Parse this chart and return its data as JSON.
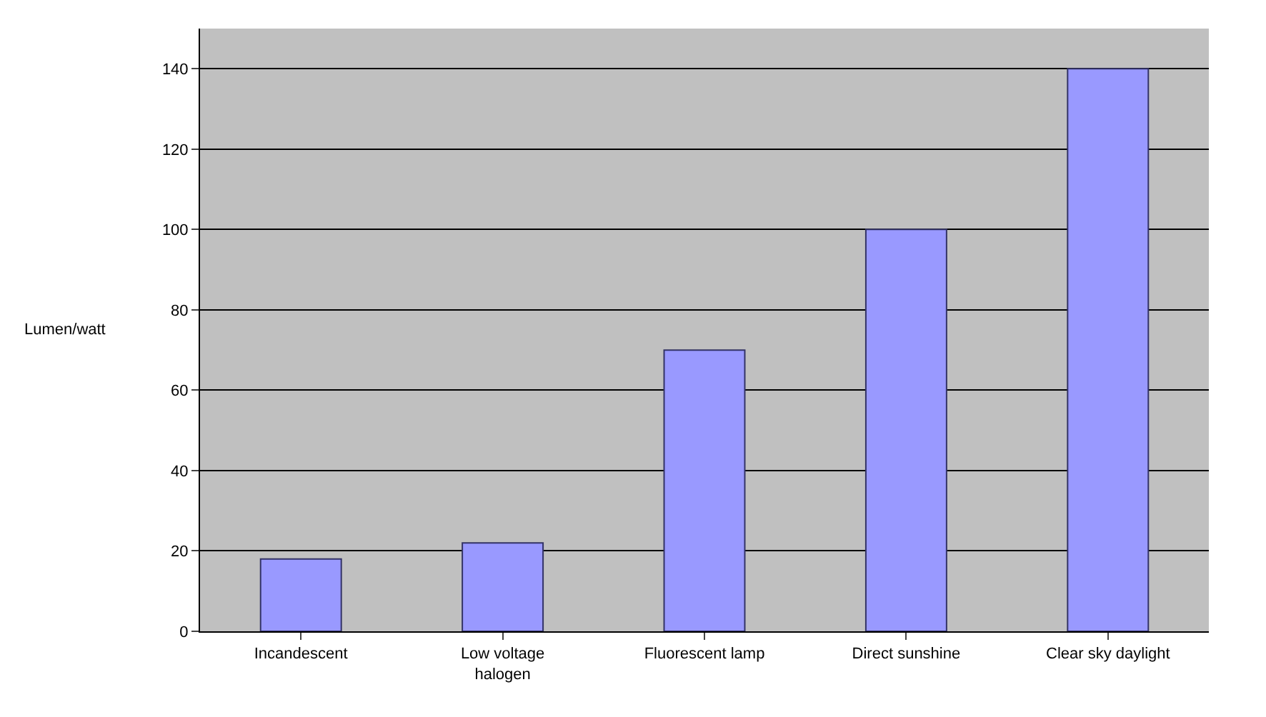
{
  "chart_data": {
    "type": "bar",
    "ylabel": "Lumen/watt",
    "categories": [
      "Incandescent",
      "Low voltage\nhalogen",
      "Fluorescent lamp",
      "Direct sunshine",
      "Clear sky daylight"
    ],
    "values": [
      18,
      22,
      70,
      100,
      140
    ],
    "color": "#9999ff",
    "ylim": [
      0,
      150
    ],
    "yticks": [
      0,
      20,
      40,
      60,
      80,
      100,
      120,
      140
    ],
    "grid": "y"
  }
}
